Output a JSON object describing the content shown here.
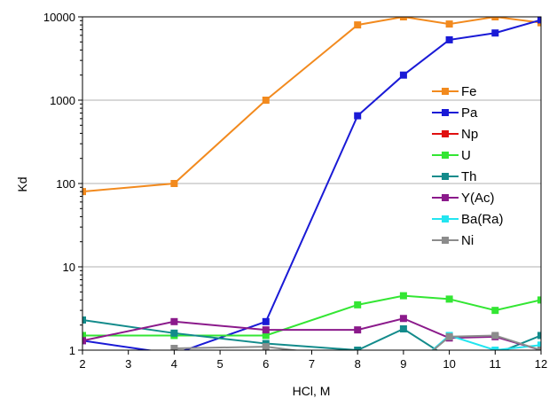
{
  "chart_data": {
    "type": "line",
    "xlabel": "HCl, M",
    "ylabel": "Kd",
    "xlim": [
      2,
      12
    ],
    "ylim": [
      1,
      10000
    ],
    "y_scale": "log",
    "x_ticks": [
      2,
      3,
      4,
      5,
      6,
      7,
      8,
      9,
      10,
      11,
      12
    ],
    "y_ticks": [
      1,
      10,
      100,
      1000,
      10000
    ],
    "y_tick_labels": [
      "1",
      "10",
      "100",
      "1000",
      "10000"
    ],
    "grid": "horizontal",
    "legend_position": "right",
    "series": [
      {
        "name": "Fe",
        "color": "#f28a1e",
        "marker": "square",
        "x": [
          2,
          4,
          6,
          8,
          9,
          10,
          11,
          12
        ],
        "y": [
          80,
          100,
          1000,
          8000,
          10000,
          8200,
          10000,
          8500
        ]
      },
      {
        "name": "Pa",
        "color": "#1a1ad6",
        "marker": "square",
        "x": [
          2,
          4,
          6,
          8,
          9,
          10,
          11,
          12
        ],
        "y": [
          1.3,
          0.9,
          2.2,
          650,
          2000,
          5300,
          6400,
          9200
        ]
      },
      {
        "name": "Np",
        "color": "#e01010",
        "marker": "square",
        "x": [],
        "y": []
      },
      {
        "name": "U",
        "color": "#33e633",
        "marker": "square",
        "x": [
          2,
          4,
          6,
          8,
          9,
          10,
          11,
          12
        ],
        "y": [
          1.5,
          1.5,
          1.5,
          3.5,
          4.5,
          4.1,
          3.0,
          4.0
        ]
      },
      {
        "name": "Th",
        "color": "#138b8b",
        "marker": "square",
        "x": [
          2,
          4,
          6,
          8,
          9,
          10,
          11,
          12
        ],
        "y": [
          2.3,
          1.6,
          1.2,
          1.0,
          1.8,
          0.8,
          0.9,
          1.5
        ]
      },
      {
        "name": "Y(Ac)",
        "color": "#8b1a8b",
        "marker": "square",
        "x": [
          2,
          4,
          6,
          8,
          9,
          10,
          11,
          12
        ],
        "y": [
          1.3,
          2.2,
          1.75,
          1.75,
          2.4,
          1.4,
          1.45,
          1.0
        ]
      },
      {
        "name": "Ba(Ra)",
        "color": "#22e5f0",
        "marker": "square",
        "x": [
          9,
          10,
          11,
          12
        ],
        "y": [
          0.5,
          1.5,
          1.0,
          1.15
        ]
      },
      {
        "name": "Ni",
        "color": "#8c8c8c",
        "marker": "square",
        "x": [
          4,
          6,
          8,
          9,
          10,
          11,
          12
        ],
        "y": [
          1.05,
          1.1,
          0.8,
          0.5,
          1.45,
          1.5,
          1.0
        ]
      }
    ]
  }
}
